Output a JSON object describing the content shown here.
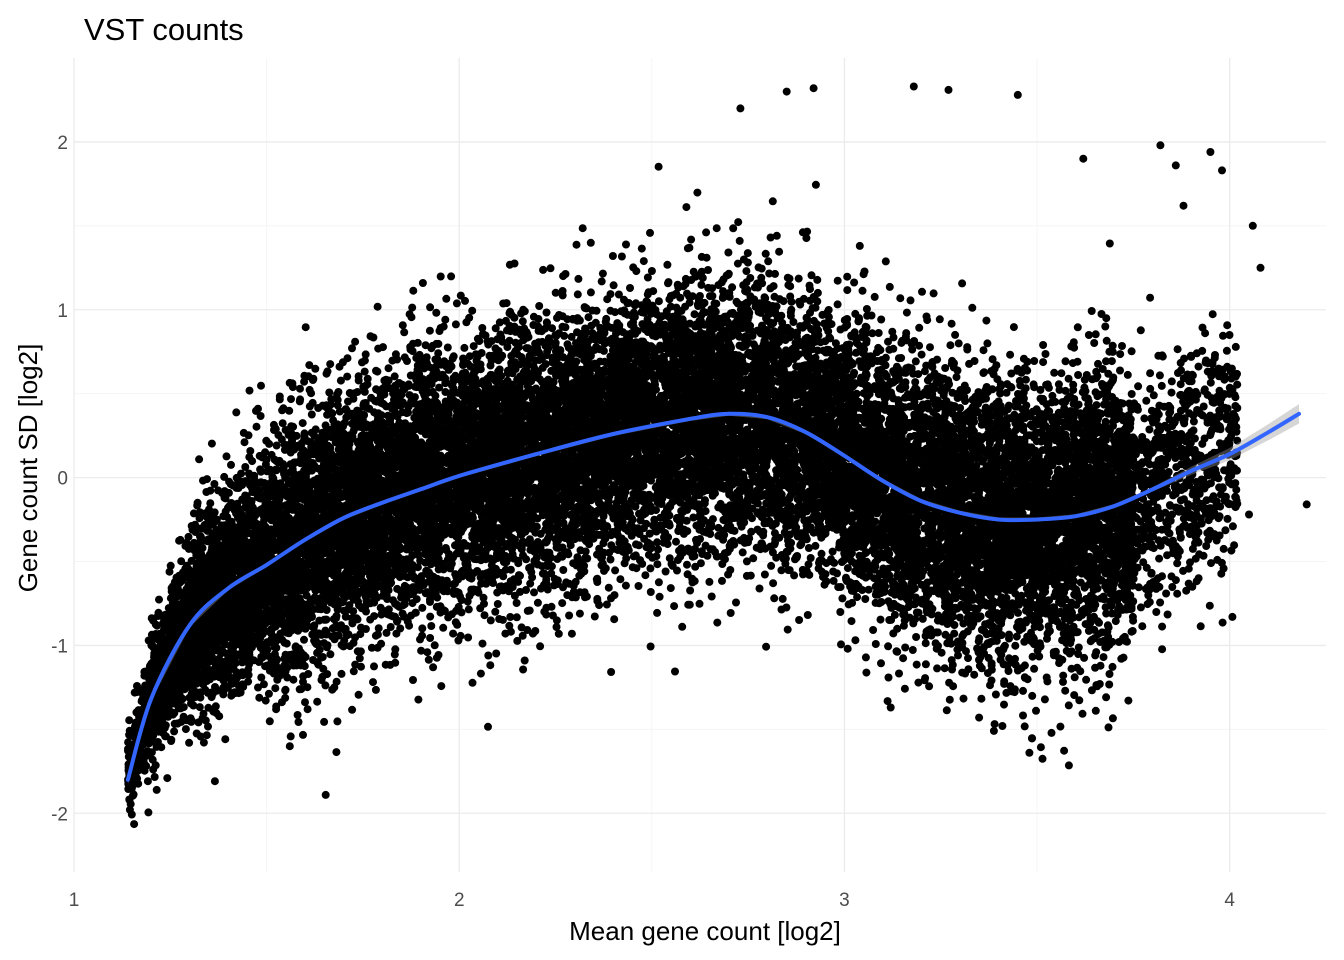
{
  "chart_data": {
    "type": "scatter",
    "title": "VST counts",
    "xlabel": "Mean gene count [log2]",
    "ylabel": "Gene count SD [log2]",
    "xlim": [
      1.0,
      4.25
    ],
    "ylim": [
      -2.35,
      2.5
    ],
    "x_ticks": [
      1,
      2,
      3,
      4
    ],
    "x_tick_labels": [
      "1",
      "2",
      "3",
      "4"
    ],
    "y_ticks": [
      -2,
      -1,
      0,
      1,
      2
    ],
    "y_tick_labels": [
      "-2",
      "-1",
      "0",
      "1",
      "2"
    ],
    "grid": true,
    "point_color": "#000000",
    "point_count_approx": 20000,
    "smooth_color": "#3366ff",
    "ribbon_color": "#999999",
    "trend": {
      "x": [
        1.14,
        1.2,
        1.3,
        1.4,
        1.5,
        1.6,
        1.7,
        1.8,
        1.9,
        2.0,
        2.2,
        2.4,
        2.6,
        2.7,
        2.8,
        2.9,
        3.0,
        3.1,
        3.2,
        3.3,
        3.4,
        3.5,
        3.6,
        3.7,
        3.8,
        3.9,
        4.0,
        4.1,
        4.18
      ],
      "y": [
        -1.8,
        -1.32,
        -0.88,
        -0.66,
        -0.52,
        -0.37,
        -0.24,
        -0.15,
        -0.07,
        0.01,
        0.14,
        0.26,
        0.35,
        0.38,
        0.36,
        0.27,
        0.13,
        -0.02,
        -0.14,
        -0.21,
        -0.25,
        -0.25,
        -0.23,
        -0.17,
        -0.07,
        0.04,
        0.14,
        0.27,
        0.38
      ]
    },
    "outliers": {
      "x": [
        2.73,
        2.85,
        2.92,
        3.18,
        3.27,
        3.45,
        3.82,
        3.95,
        3.98,
        3.86,
        3.88,
        4.06,
        4.08,
        4.2,
        4.05,
        3.12,
        3.41,
        3.48,
        2.17,
        3.62
      ],
      "y": [
        2.2,
        2.3,
        2.32,
        2.33,
        2.31,
        2.28,
        1.98,
        1.94,
        1.83,
        1.86,
        1.62,
        1.5,
        1.25,
        -0.16,
        -0.22,
        -1.37,
        -1.48,
        -1.64,
        -1.09,
        1.9
      ]
    }
  }
}
